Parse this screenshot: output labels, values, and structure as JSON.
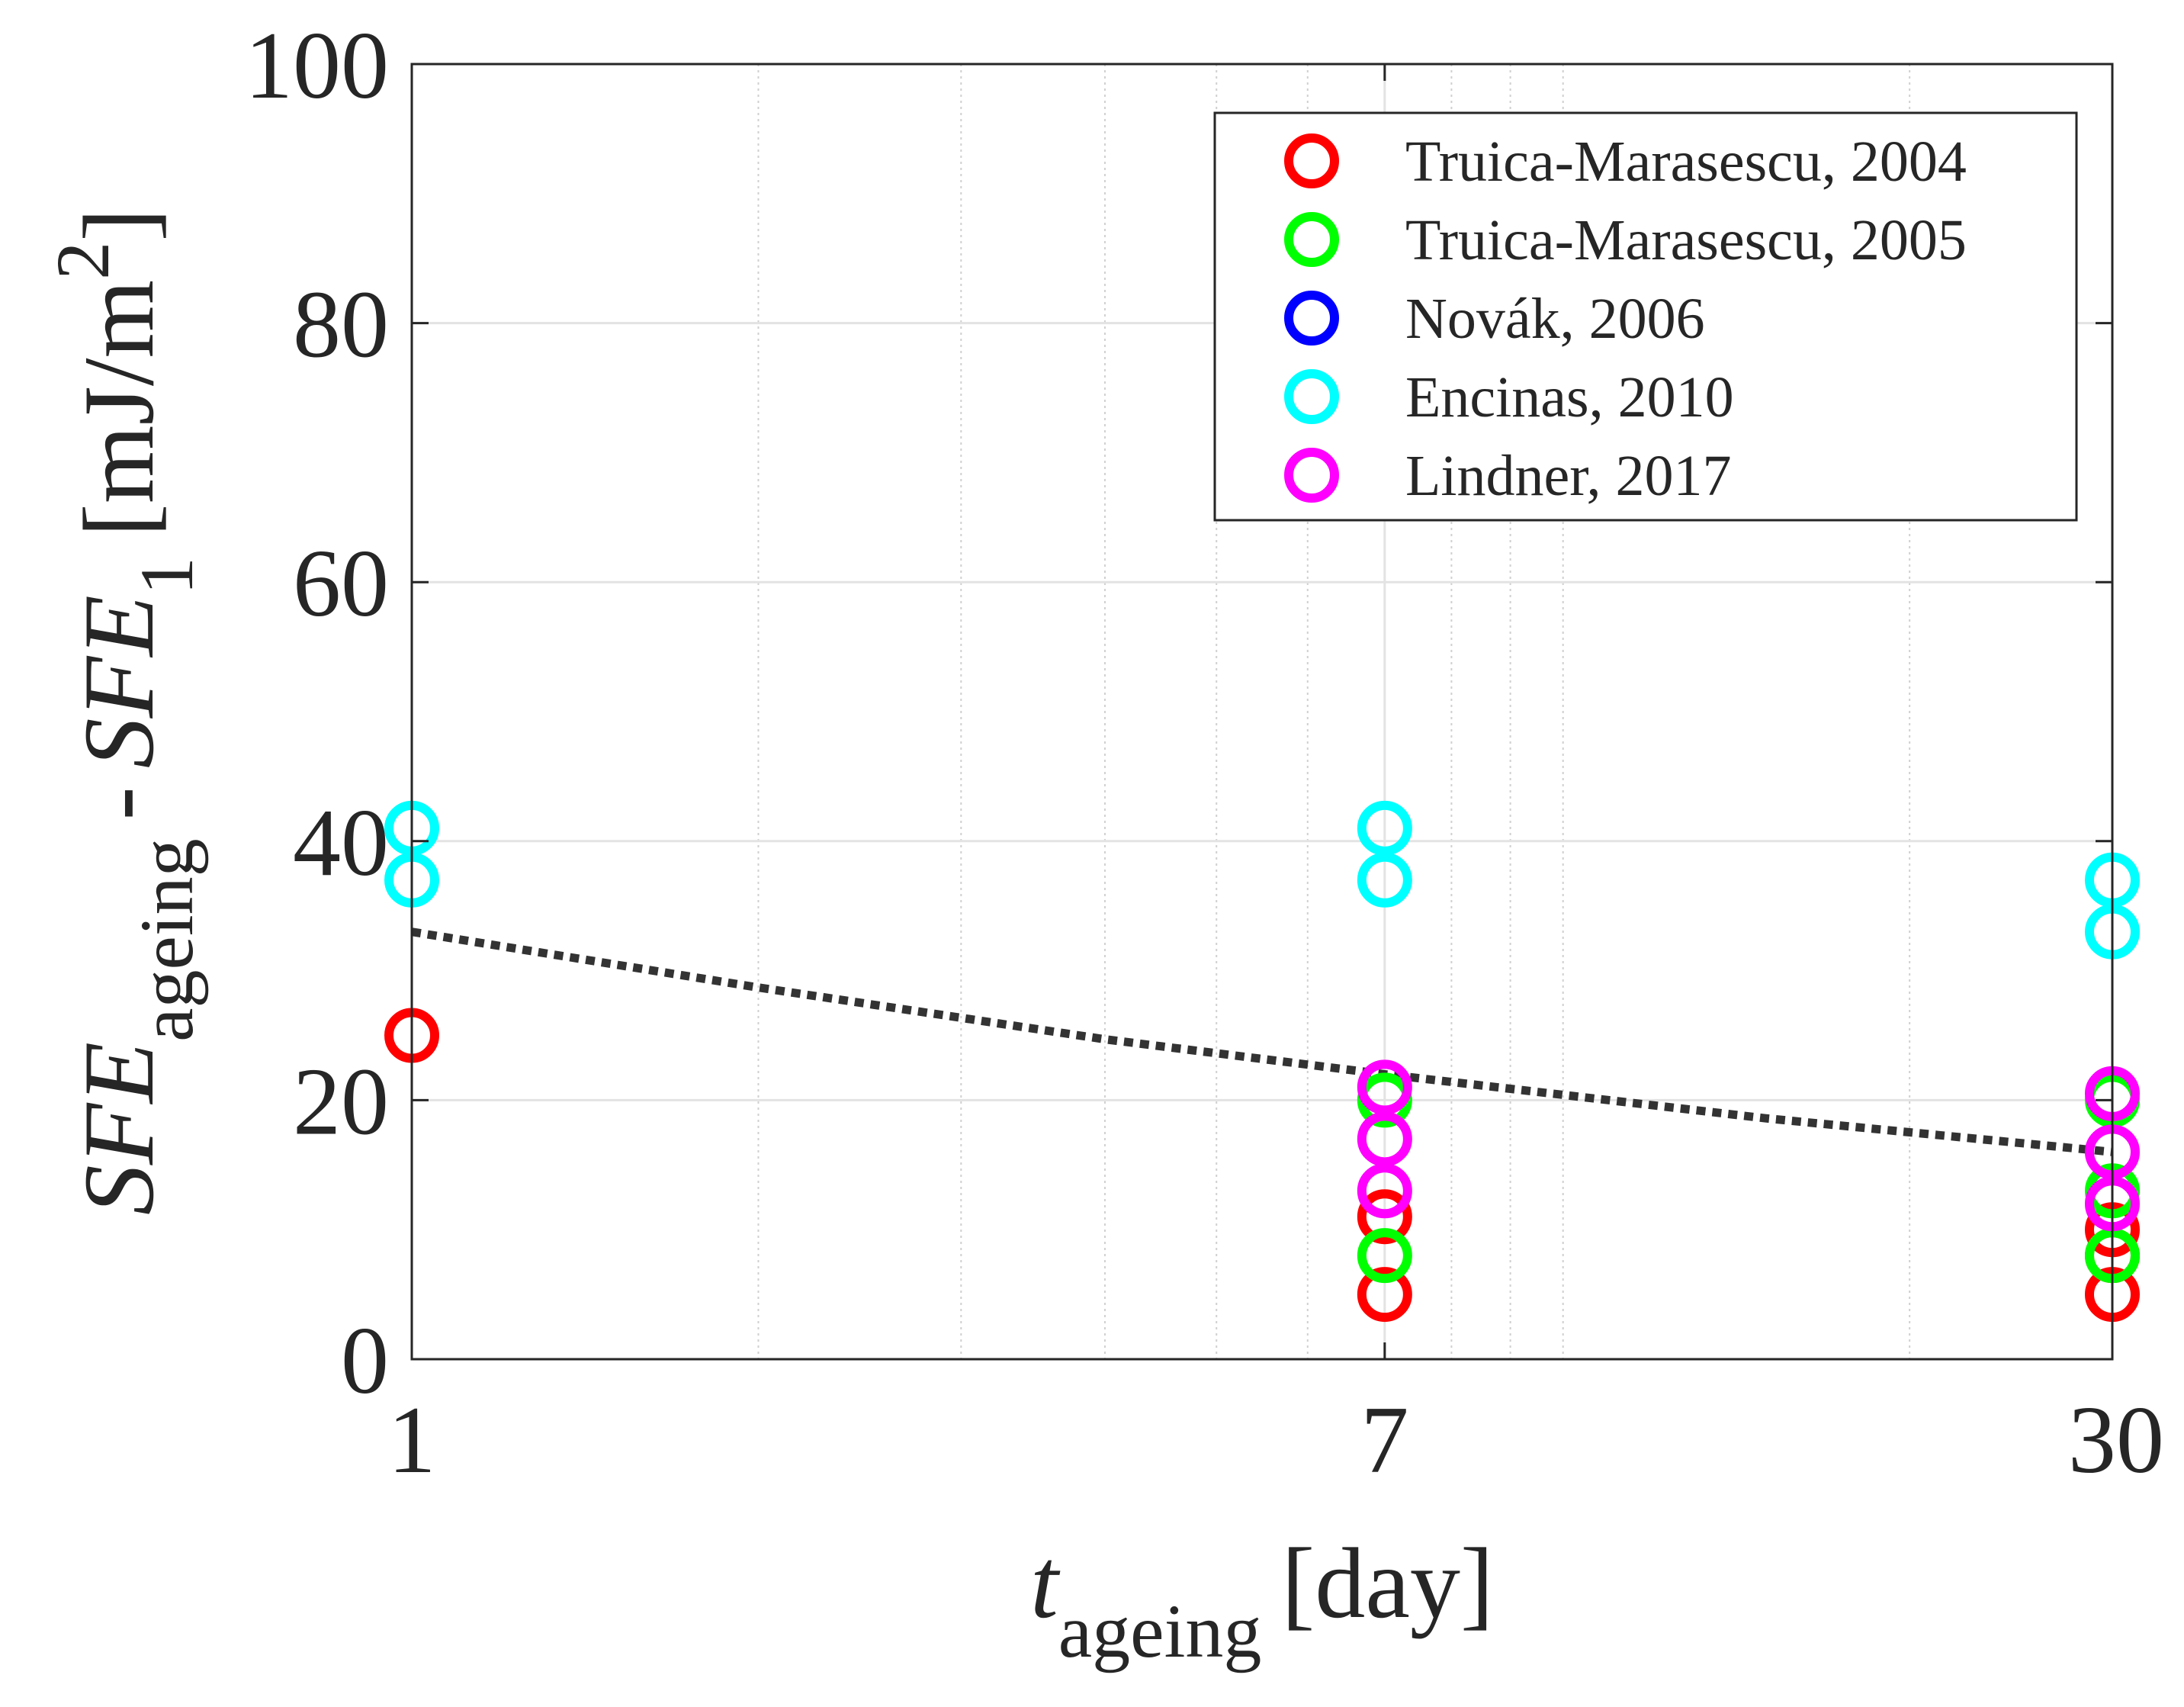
{
  "chart_data": {
    "type": "scatter",
    "title": "",
    "xscale": "log",
    "xlim": [
      1,
      30
    ],
    "ylim": [
      0,
      100
    ],
    "grid": true,
    "xticks": [
      1,
      7,
      30
    ],
    "xtick_labels": [
      "1",
      "7",
      "30"
    ],
    "yticks": [
      0,
      20,
      40,
      60,
      80,
      100
    ],
    "ytick_labels": [
      "0",
      "20",
      "40",
      "60",
      "80",
      "100"
    ],
    "xlabel": {
      "main": "t",
      "subscript": "ageing",
      "unit": "[day]"
    },
    "ylabel": {
      "term1": "SFE",
      "sub1": "ageing",
      "minus": "-",
      "term2": "SFE",
      "sub2": "1",
      "unit_open": "[mJ/m",
      "unit_sup": "2",
      "unit_close": "]"
    },
    "legend_position": "top-right",
    "series": [
      {
        "name": "Truica-Marasescu, 2004",
        "color": "#ff0000",
        "points": [
          [
            1,
            25
          ],
          [
            7,
            11
          ],
          [
            7,
            5
          ],
          [
            30,
            10
          ],
          [
            30,
            8
          ],
          [
            30,
            5
          ]
        ]
      },
      {
        "name": "Truica-Marasescu, 2005",
        "color": "#00ff00",
        "points": [
          [
            7,
            20
          ],
          [
            7,
            8
          ],
          [
            30,
            20
          ],
          [
            30,
            13
          ],
          [
            30,
            8
          ]
        ]
      },
      {
        "name": "Novák, 2006",
        "color": "#0000ff",
        "points": []
      },
      {
        "name": "Encinas, 2010",
        "color": "#00ffff",
        "points": [
          [
            1,
            41
          ],
          [
            1,
            37
          ],
          [
            7,
            41
          ],
          [
            7,
            37
          ],
          [
            30,
            37
          ],
          [
            30,
            33
          ]
        ]
      },
      {
        "name": "Lindner, 2017",
        "color": "#ff00ff",
        "points": [
          [
            7,
            21
          ],
          [
            7,
            17
          ],
          [
            7,
            13
          ],
          [
            30,
            20.5
          ],
          [
            30,
            16
          ],
          [
            30,
            12
          ]
        ]
      }
    ],
    "trend_line": {
      "style": "dotted",
      "color": "#333333",
      "points": [
        [
          1,
          33
        ],
        [
          2,
          28.7
        ],
        [
          4,
          24.7
        ],
        [
          7,
          22
        ],
        [
          15,
          18.6
        ],
        [
          30,
          16
        ]
      ]
    }
  }
}
